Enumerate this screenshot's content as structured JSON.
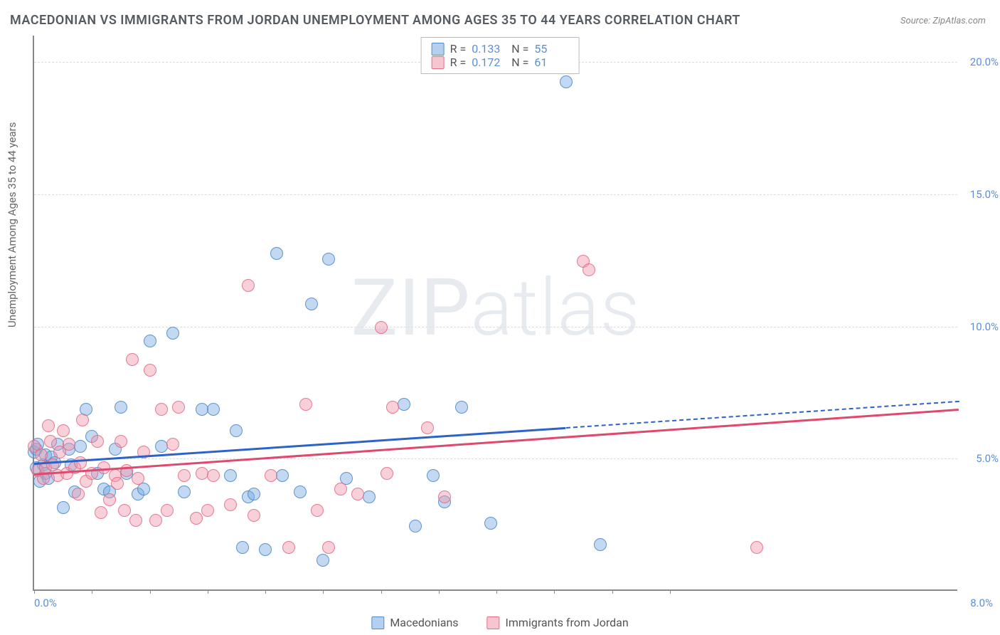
{
  "title": "MACEDONIAN VS IMMIGRANTS FROM JORDAN UNEMPLOYMENT AMONG AGES 35 TO 44 YEARS CORRELATION CHART",
  "source": "Source: ZipAtlas.com",
  "ylabel": "Unemployment Among Ages 35 to 44 years",
  "watermark_a": "ZIP",
  "watermark_b": "atlas",
  "chart": {
    "type": "scatter",
    "xlim": [
      0.0,
      8.0
    ],
    "ylim": [
      0.0,
      21.0
    ],
    "yticks": [
      5.0,
      10.0,
      15.0,
      20.0
    ],
    "ytick_labels": [
      "5.0%",
      "10.0%",
      "15.0%",
      "20.0%"
    ],
    "xtick_left": "0.0%",
    "xtick_right": "8.0%",
    "xtick_marks": [
      0,
      0.5,
      1.0,
      1.5,
      2.0,
      2.5,
      3.0,
      3.5,
      4.0,
      4.5,
      5.0,
      5.5
    ],
    "background": "#ffffff",
    "grid_color": "#dddddd",
    "axis_color": "#888888",
    "tick_font_color": "#5b8fd6",
    "series": [
      {
        "name": "Macedonians",
        "color_fill": "rgba(120,170,225,0.45)",
        "color_stroke": "rgba(70,130,200,0.8)",
        "R": "0.133",
        "N": "55",
        "reg_start": [
          0.0,
          4.85
        ],
        "reg_solid_end": [
          4.6,
          6.2
        ],
        "reg_dash_end": [
          8.0,
          7.2
        ],
        "reg_color": "#2d63c8",
        "points": [
          [
            0.0,
            5.2
          ],
          [
            0.02,
            5.3
          ],
          [
            0.03,
            5.5
          ],
          [
            0.02,
            4.6
          ],
          [
            0.05,
            4.1
          ],
          [
            0.08,
            4.7
          ],
          [
            0.1,
            4.4
          ],
          [
            0.1,
            5.1
          ],
          [
            0.15,
            5.0
          ],
          [
            0.12,
            4.2
          ],
          [
            0.18,
            4.8
          ],
          [
            0.2,
            5.5
          ],
          [
            0.25,
            3.1
          ],
          [
            0.3,
            5.3
          ],
          [
            0.32,
            4.7
          ],
          [
            0.35,
            3.7
          ],
          [
            0.4,
            5.4
          ],
          [
            0.45,
            6.8
          ],
          [
            0.5,
            5.8
          ],
          [
            0.55,
            4.4
          ],
          [
            0.6,
            3.8
          ],
          [
            0.65,
            3.7
          ],
          [
            0.7,
            5.3
          ],
          [
            0.75,
            6.9
          ],
          [
            0.8,
            4.4
          ],
          [
            0.9,
            3.6
          ],
          [
            0.95,
            3.8
          ],
          [
            1.0,
            9.4
          ],
          [
            1.1,
            5.4
          ],
          [
            1.2,
            9.7
          ],
          [
            1.3,
            3.7
          ],
          [
            1.45,
            6.8
          ],
          [
            1.55,
            6.8
          ],
          [
            1.7,
            4.3
          ],
          [
            1.75,
            6.0
          ],
          [
            1.8,
            1.6
          ],
          [
            1.85,
            3.5
          ],
          [
            1.9,
            3.6
          ],
          [
            2.0,
            1.5
          ],
          [
            2.1,
            12.7
          ],
          [
            2.15,
            4.3
          ],
          [
            2.3,
            3.7
          ],
          [
            2.55,
            12.5
          ],
          [
            2.4,
            10.8
          ],
          [
            2.5,
            1.1
          ],
          [
            2.7,
            4.2
          ],
          [
            2.9,
            3.5
          ],
          [
            3.2,
            7.0
          ],
          [
            3.3,
            2.4
          ],
          [
            3.45,
            4.3
          ],
          [
            3.55,
            3.3
          ],
          [
            3.7,
            6.9
          ],
          [
            3.95,
            2.5
          ],
          [
            4.6,
            19.2
          ],
          [
            4.9,
            1.7
          ]
        ]
      },
      {
        "name": "Immigrants from Jordan",
        "color_fill": "rgba(240,150,170,0.45)",
        "color_stroke": "rgba(225,100,130,0.8)",
        "R": "0.172",
        "N": "61",
        "reg_start": [
          0.0,
          4.45
        ],
        "reg_solid_end": [
          8.0,
          6.9
        ],
        "reg_color": "#e0496e",
        "points": [
          [
            0.0,
            5.4
          ],
          [
            0.03,
            4.5
          ],
          [
            0.06,
            5.1
          ],
          [
            0.08,
            4.2
          ],
          [
            0.1,
            4.6
          ],
          [
            0.12,
            6.2
          ],
          [
            0.14,
            5.6
          ],
          [
            0.16,
            4.7
          ],
          [
            0.2,
            4.3
          ],
          [
            0.22,
            5.2
          ],
          [
            0.25,
            6.0
          ],
          [
            0.28,
            4.4
          ],
          [
            0.3,
            5.5
          ],
          [
            0.35,
            4.6
          ],
          [
            0.38,
            3.6
          ],
          [
            0.4,
            4.8
          ],
          [
            0.42,
            6.4
          ],
          [
            0.45,
            4.1
          ],
          [
            0.5,
            4.4
          ],
          [
            0.55,
            5.6
          ],
          [
            0.58,
            2.9
          ],
          [
            0.6,
            4.6
          ],
          [
            0.65,
            3.4
          ],
          [
            0.7,
            4.3
          ],
          [
            0.72,
            4.0
          ],
          [
            0.75,
            5.6
          ],
          [
            0.78,
            3.0
          ],
          [
            0.8,
            4.5
          ],
          [
            0.85,
            8.7
          ],
          [
            0.88,
            2.6
          ],
          [
            0.9,
            4.2
          ],
          [
            0.95,
            5.2
          ],
          [
            1.0,
            8.3
          ],
          [
            1.05,
            2.6
          ],
          [
            1.1,
            6.8
          ],
          [
            1.15,
            3.0
          ],
          [
            1.2,
            5.5
          ],
          [
            1.25,
            6.9
          ],
          [
            1.3,
            4.3
          ],
          [
            1.4,
            2.7
          ],
          [
            1.45,
            4.4
          ],
          [
            1.5,
            3.0
          ],
          [
            1.55,
            4.3
          ],
          [
            1.7,
            3.2
          ],
          [
            1.85,
            11.5
          ],
          [
            1.9,
            2.8
          ],
          [
            2.05,
            4.3
          ],
          [
            2.2,
            1.6
          ],
          [
            2.35,
            7.0
          ],
          [
            2.45,
            3.0
          ],
          [
            2.55,
            1.6
          ],
          [
            2.65,
            3.8
          ],
          [
            2.8,
            3.6
          ],
          [
            3.0,
            9.9
          ],
          [
            3.05,
            4.4
          ],
          [
            3.1,
            6.9
          ],
          [
            3.4,
            6.1
          ],
          [
            3.55,
            3.5
          ],
          [
            4.75,
            12.4
          ],
          [
            4.8,
            12.1
          ],
          [
            6.25,
            1.6
          ]
        ]
      }
    ]
  },
  "legend_stats_labels": {
    "R": "R =",
    "N": "N ="
  },
  "legend_bottom": [
    "Macedonians",
    "Immigrants from Jordan"
  ]
}
